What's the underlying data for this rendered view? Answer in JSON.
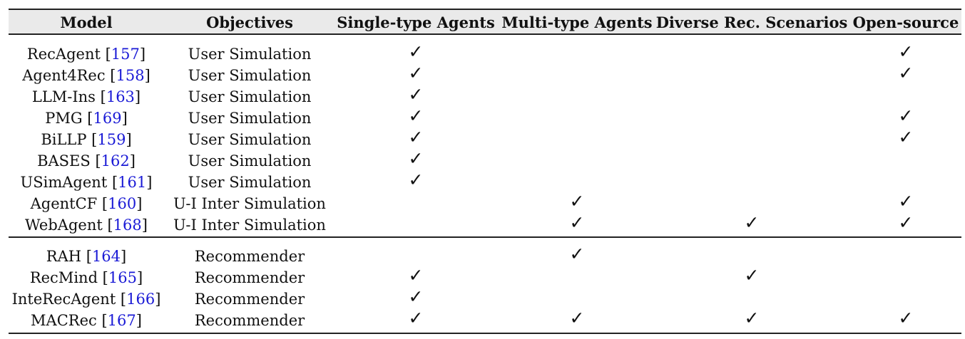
{
  "table": {
    "headers": [
      "Model",
      "Objectives",
      "Single-type Agents",
      "Multi-type Agents",
      "Diverse Rec. Scenarios",
      "Open-source"
    ],
    "check_symbol": "✓",
    "groups": [
      {
        "rows": [
          {
            "model": "RecAgent",
            "ref": "157",
            "objective": "User Simulation",
            "single": true,
            "multi": false,
            "diverse": false,
            "open": true
          },
          {
            "model": "Agent4Rec",
            "ref": "158",
            "objective": "User Simulation",
            "single": true,
            "multi": false,
            "diverse": false,
            "open": true
          },
          {
            "model": "LLM-Ins",
            "ref": "163",
            "objective": "User Simulation",
            "single": true,
            "multi": false,
            "diverse": false,
            "open": false
          },
          {
            "model": "PMG",
            "ref": "169",
            "objective": "User Simulation",
            "single": true,
            "multi": false,
            "diverse": false,
            "open": true
          },
          {
            "model": "BiLLP",
            "ref": "159",
            "objective": "User Simulation",
            "single": true,
            "multi": false,
            "diverse": false,
            "open": true
          },
          {
            "model": "BASES",
            "ref": "162",
            "objective": "User Simulation",
            "single": true,
            "multi": false,
            "diverse": false,
            "open": false
          },
          {
            "model": "USimAgent",
            "ref": "161",
            "objective": "User Simulation",
            "single": true,
            "multi": false,
            "diverse": false,
            "open": false
          },
          {
            "model": "AgentCF",
            "ref": "160",
            "objective": "U-I Inter Simulation",
            "single": false,
            "multi": true,
            "diverse": false,
            "open": true
          },
          {
            "model": "WebAgent",
            "ref": "168",
            "objective": "U-I Inter Simulation",
            "single": false,
            "multi": true,
            "diverse": true,
            "open": true
          }
        ]
      },
      {
        "rows": [
          {
            "model": "RAH",
            "ref": "164",
            "objective": "Recommender",
            "single": false,
            "multi": true,
            "diverse": false,
            "open": false
          },
          {
            "model": "RecMind",
            "ref": "165",
            "objective": "Recommender",
            "single": true,
            "multi": false,
            "diverse": true,
            "open": false
          },
          {
            "model": "InteRecAgent",
            "ref": "166",
            "objective": "Recommender",
            "single": true,
            "multi": false,
            "diverse": false,
            "open": false
          },
          {
            "model": "MACRec",
            "ref": "167",
            "objective": "Recommender",
            "single": true,
            "multi": true,
            "diverse": true,
            "open": true
          }
        ]
      }
    ]
  }
}
